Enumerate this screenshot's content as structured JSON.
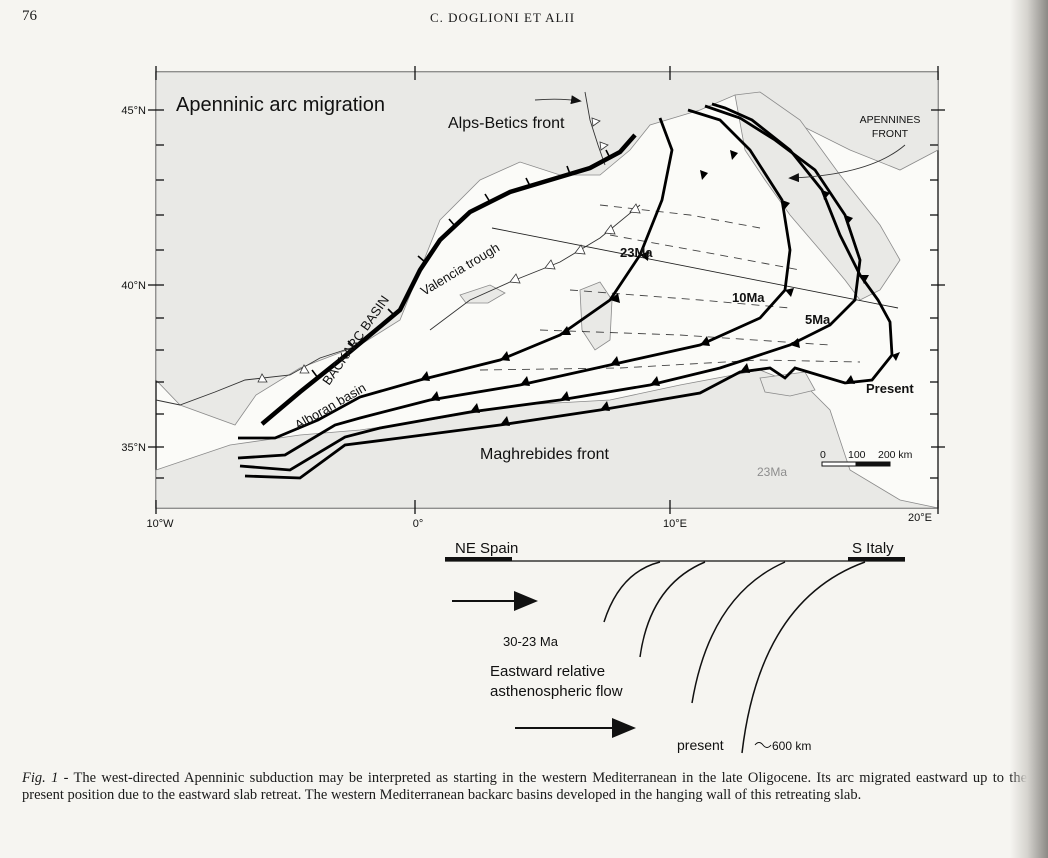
{
  "header": {
    "page_number": "76",
    "running_head": "C. DOGLIONI ET ALII"
  },
  "map": {
    "title": "Apenninic arc migration",
    "lat_labels": [
      "45°N",
      "40°N",
      "35°N"
    ],
    "lon_labels": [
      "10°W",
      "0°",
      "10°E",
      "20°E"
    ],
    "labels": {
      "alps_betics_front": "Alps-Betics front",
      "apennines_front_line1": "APENNINES",
      "apennines_front_line2": "FRONT",
      "valencia_trough": "Valencia trough",
      "backarc_basin": "BACKARC BASIN",
      "alboran_basin": "Alboran basin",
      "maghrebides_front": "Maghrebides front",
      "age_23": "23Ma",
      "age_10": "10Ma",
      "age_5": "5Ma",
      "present": "Present",
      "faint_23": "23Ma"
    },
    "scale_bar": {
      "zero": "0",
      "mid": "100",
      "end": "200 km"
    }
  },
  "section": {
    "ne_spain": "NE Spain",
    "s_italy": "S Italy",
    "age_30_23": "30-23 Ma",
    "flow_line1": "Eastward relative",
    "flow_line2": "asthenospheric flow",
    "present": "present",
    "depth": "600 km"
  },
  "caption": {
    "lead": "Fig. 1 -",
    "text": " The west-directed Apenninic subduction may be interpreted as starting in the western Mediterranean in the late Oligocene. Its arc migrated eastward up to the present position due to the eastward slab retreat. The western Mediterranean backarc basins developed in the hanging wall of this retreating slab."
  }
}
